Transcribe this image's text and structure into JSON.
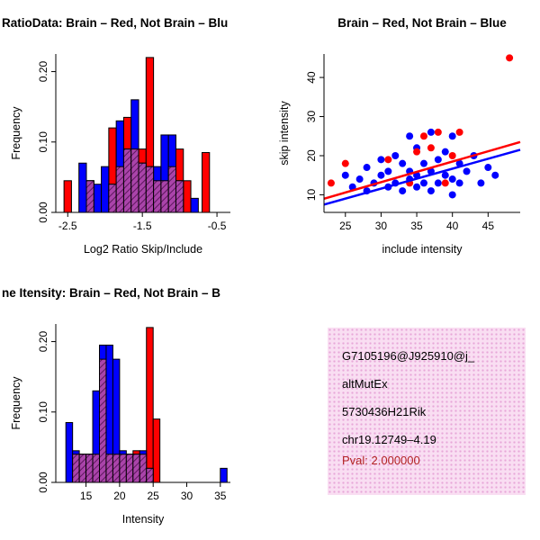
{
  "colors": {
    "red": "#ff0000",
    "blue": "#0000ff",
    "overlap": "#aa44aa",
    "overlap_line": "#5e175e",
    "axis": "#000000",
    "info_box_bg": "#f9def2",
    "info_box_dot": "#e7a6d8",
    "pval": "#b22222"
  },
  "chart_data": [
    {
      "type": "bar",
      "subtype": "overlaid-histogram",
      "title": "RatioData: Brain – Red, Not Brain – Blu",
      "title_align": "left",
      "xlabel": "Log2 Ratio Skip/Include",
      "ylabel": "Frequency",
      "xlim": [
        -2.66,
        -0.32
      ],
      "ylim": [
        0,
        0.225
      ],
      "xticks": [
        -2.5,
        -1.5,
        -0.5
      ],
      "xtick_labels": [
        "-2.5",
        "-1.5",
        "-0.5"
      ],
      "yticks": [
        0,
        0.1,
        0.2
      ],
      "ytick_labels": [
        "0.00",
        "0.10",
        "0.20"
      ],
      "bin_width": 0.1,
      "grid": false,
      "legend": "Brain red, Not Brain blue, overlap hatched purple",
      "series": [
        {
          "key": "brain-red",
          "name": "Brain",
          "color": "#ff0000",
          "bins": [
            {
              "x": -2.55,
              "h": 0.045
            },
            {
              "x": -2.25,
              "h": 0.045
            },
            {
              "x": -1.95,
              "h": 0.12
            },
            {
              "x": -1.85,
              "h": 0.065
            },
            {
              "x": -1.75,
              "h": 0.135
            },
            {
              "x": -1.65,
              "h": 0.09
            },
            {
              "x": -1.55,
              "h": 0.09
            },
            {
              "x": -1.45,
              "h": 0.22
            },
            {
              "x": -1.35,
              "h": 0.045
            },
            {
              "x": -1.25,
              "h": 0.045
            },
            {
              "x": -1.15,
              "h": 0.065
            },
            {
              "x": -1.05,
              "h": 0.09
            },
            {
              "x": -0.95,
              "h": 0.045
            },
            {
              "x": -0.7,
              "h": 0.085
            }
          ]
        },
        {
          "key": "notbrain-blue",
          "name": "Not Brain",
          "color": "#0000ff",
          "bins": [
            {
              "x": -2.35,
              "h": 0.07
            },
            {
              "x": -2.25,
              "h": 0.045
            },
            {
              "x": -2.15,
              "h": 0.04
            },
            {
              "x": -2.05,
              "h": 0.065
            },
            {
              "x": -1.95,
              "h": 0.04
            },
            {
              "x": -1.85,
              "h": 0.13
            },
            {
              "x": -1.75,
              "h": 0.09
            },
            {
              "x": -1.65,
              "h": 0.16
            },
            {
              "x": -1.55,
              "h": 0.07
            },
            {
              "x": -1.45,
              "h": 0.065
            },
            {
              "x": -1.35,
              "h": 0.065
            },
            {
              "x": -1.25,
              "h": 0.11
            },
            {
              "x": -1.15,
              "h": 0.11
            },
            {
              "x": -1.05,
              "h": 0.045
            },
            {
              "x": -0.85,
              "h": 0.02
            }
          ]
        }
      ]
    },
    {
      "type": "scatter",
      "title": "Brain – Red, Not Brain – Blue",
      "title_align": "center",
      "xlabel": "include intensity",
      "ylabel": "skip intensity",
      "xlim": [
        22,
        49.5
      ],
      "ylim": [
        5.5,
        46
      ],
      "xticks": [
        25,
        30,
        35,
        40,
        45
      ],
      "xtick_labels": [
        "25",
        "30",
        "35",
        "40",
        "45"
      ],
      "yticks": [
        10,
        20,
        30,
        40
      ],
      "ytick_labels": [
        "10",
        "20",
        "30",
        "40"
      ],
      "grid": false,
      "series": [
        {
          "key": "notbrain-blue",
          "name": "Not Brain",
          "color": "#0000ff",
          "points": [
            [
              25,
              15
            ],
            [
              26,
              12
            ],
            [
              27,
              14
            ],
            [
              28,
              11
            ],
            [
              28,
              17
            ],
            [
              29,
              13
            ],
            [
              30,
              15
            ],
            [
              30,
              19
            ],
            [
              31,
              12
            ],
            [
              31,
              16
            ],
            [
              32,
              13
            ],
            [
              32,
              20
            ],
            [
              33,
              11
            ],
            [
              33,
              18
            ],
            [
              34,
              14
            ],
            [
              34,
              16
            ],
            [
              34,
              25
            ],
            [
              35,
              12
            ],
            [
              35,
              15
            ],
            [
              35,
              22
            ],
            [
              36,
              13
            ],
            [
              36,
              18
            ],
            [
              37,
              11
            ],
            [
              37,
              16
            ],
            [
              37,
              26
            ],
            [
              38,
              13
            ],
            [
              38,
              19
            ],
            [
              39,
              15
            ],
            [
              39,
              21
            ],
            [
              40,
              10
            ],
            [
              40,
              14
            ],
            [
              40,
              25
            ],
            [
              41,
              13
            ],
            [
              41,
              18
            ],
            [
              42,
              16
            ],
            [
              43,
              20
            ],
            [
              44,
              13
            ],
            [
              45,
              17
            ],
            [
              46,
              15
            ]
          ],
          "fit_line": {
            "x1": 22,
            "y1": 7.5,
            "x2": 49.5,
            "y2": 21.5
          }
        },
        {
          "key": "brain-red",
          "name": "Brain",
          "color": "#ff0000",
          "points": [
            [
              23,
              13
            ],
            [
              25,
              18
            ],
            [
              31,
              19
            ],
            [
              34,
              13
            ],
            [
              35,
              21
            ],
            [
              36,
              25
            ],
            [
              37,
              22
            ],
            [
              38,
              26
            ],
            [
              39,
              13
            ],
            [
              40,
              20
            ],
            [
              41,
              26
            ],
            [
              48,
              45
            ]
          ],
          "fit_line": {
            "x1": 22,
            "y1": 9,
            "x2": 49.5,
            "y2": 23.5
          }
        }
      ]
    },
    {
      "type": "bar",
      "subtype": "overlaid-histogram",
      "title": "ne Itensity: Brain – Red, Not Brain – B",
      "title_align": "left",
      "xlabel": "Intensity",
      "ylabel": "Frequency",
      "xlim": [
        10.5,
        36.5
      ],
      "ylim": [
        0,
        0.225
      ],
      "xticks": [
        15,
        20,
        25,
        30,
        35
      ],
      "xtick_labels": [
        "15",
        "20",
        "25",
        "30",
        "35"
      ],
      "yticks": [
        0,
        0.1,
        0.2
      ],
      "ytick_labels": [
        "0.00",
        "0.10",
        "0.20"
      ],
      "bin_width": 1,
      "grid": false,
      "legend": "Brain red, Not Brain blue, overlap hatched purple",
      "series": [
        {
          "key": "brain-red",
          "name": "Brain",
          "color": "#ff0000",
          "bins": [
            {
              "x": 13,
              "h": 0.04
            },
            {
              "x": 14,
              "h": 0.04
            },
            {
              "x": 15,
              "h": 0.04
            },
            {
              "x": 16,
              "h": 0.04
            },
            {
              "x": 17,
              "h": 0.175
            },
            {
              "x": 18,
              "h": 0.04
            },
            {
              "x": 19,
              "h": 0.04
            },
            {
              "x": 20,
              "h": 0.04
            },
            {
              "x": 21,
              "h": 0.04
            },
            {
              "x": 22,
              "h": 0.045
            },
            {
              "x": 23,
              "h": 0.04
            },
            {
              "x": 24,
              "h": 0.22
            },
            {
              "x": 25,
              "h": 0.09
            }
          ]
        },
        {
          "key": "notbrain-blue",
          "name": "Not Brain",
          "color": "#0000ff",
          "bins": [
            {
              "x": 12,
              "h": 0.085
            },
            {
              "x": 13,
              "h": 0.045
            },
            {
              "x": 14,
              "h": 0.04
            },
            {
              "x": 15,
              "h": 0.04
            },
            {
              "x": 16,
              "h": 0.13
            },
            {
              "x": 17,
              "h": 0.195
            },
            {
              "x": 18,
              "h": 0.195
            },
            {
              "x": 19,
              "h": 0.175
            },
            {
              "x": 20,
              "h": 0.045
            },
            {
              "x": 21,
              "h": 0.04
            },
            {
              "x": 22,
              "h": 0.04
            },
            {
              "x": 23,
              "h": 0.045
            },
            {
              "x": 24,
              "h": 0.02
            },
            {
              "x": 35,
              "h": 0.02
            }
          ]
        }
      ]
    }
  ],
  "info_box": {
    "lines": [
      "G7105196@J925910@j_",
      "altMutEx",
      "5730436H21Rik",
      "chr19.12749–4.19"
    ],
    "pval_line": "Pval: 2.000000"
  }
}
